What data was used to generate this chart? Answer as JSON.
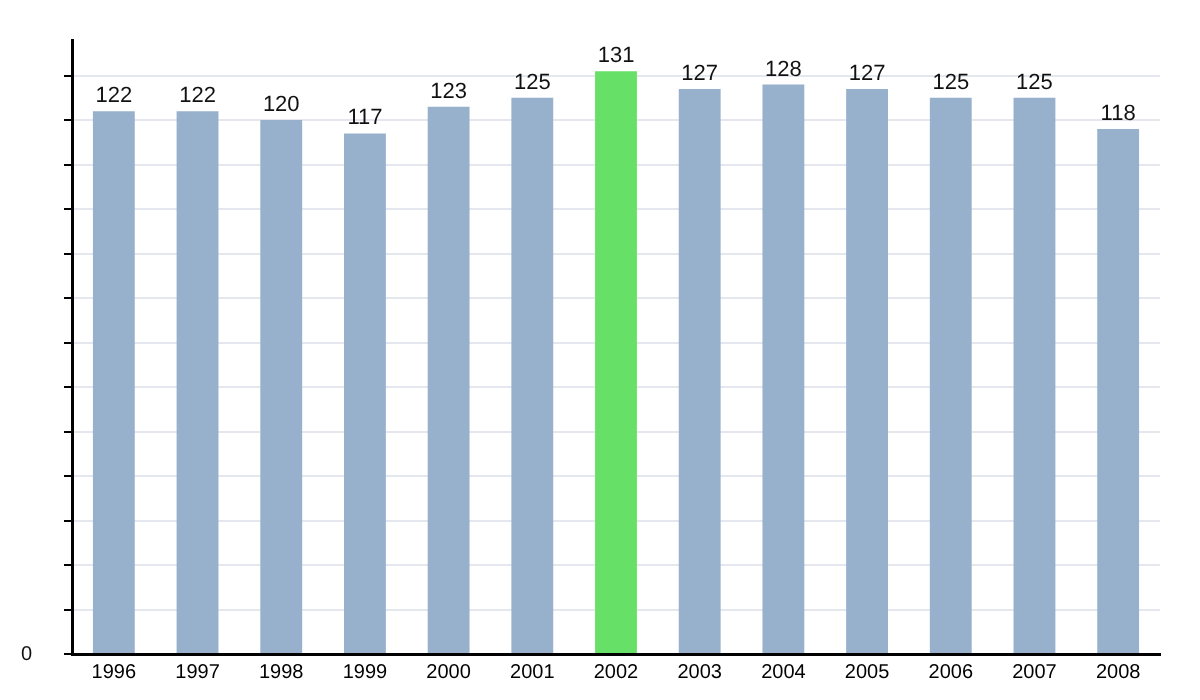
{
  "chart_data": {
    "type": "bar",
    "categories": [
      "1996",
      "1997",
      "1998",
      "1999",
      "2000",
      "2001",
      "2002",
      "2003",
      "2004",
      "2005",
      "2006",
      "2007",
      "2008"
    ],
    "values": [
      122,
      122,
      120,
      117,
      123,
      125,
      131,
      127,
      128,
      127,
      125,
      125,
      118
    ],
    "colors": [
      "#97b0cb",
      "#97b0cb",
      "#97b0cb",
      "#97b0cb",
      "#97b0cb",
      "#97b0cb",
      "#66e066",
      "#97b0cb",
      "#97b0cb",
      "#97b0cb",
      "#97b0cb",
      "#97b0cb",
      "#97b0cb"
    ],
    "ylim": [
      0,
      138
    ],
    "yticks": [
      {
        "value": 0,
        "label": null
      },
      {
        "value": 10,
        "label": null
      },
      {
        "value": 20,
        "label": null
      },
      {
        "value": 30,
        "label": null
      },
      {
        "value": 40,
        "label": null
      },
      {
        "value": 50,
        "label": null
      },
      {
        "value": 60,
        "label": null
      },
      {
        "value": 70,
        "label": null
      },
      {
        "value": 80,
        "label": null
      },
      {
        "value": 90,
        "label": null
      },
      {
        "value": 100,
        "label": null
      },
      {
        "value": 110,
        "label": null
      },
      {
        "value": 120,
        "label": null
      },
      {
        "value": 130,
        "label": null
      }
    ],
    "annotations": [
      "0"
    ],
    "grid": "y",
    "data_labels": true,
    "legend": false
  }
}
